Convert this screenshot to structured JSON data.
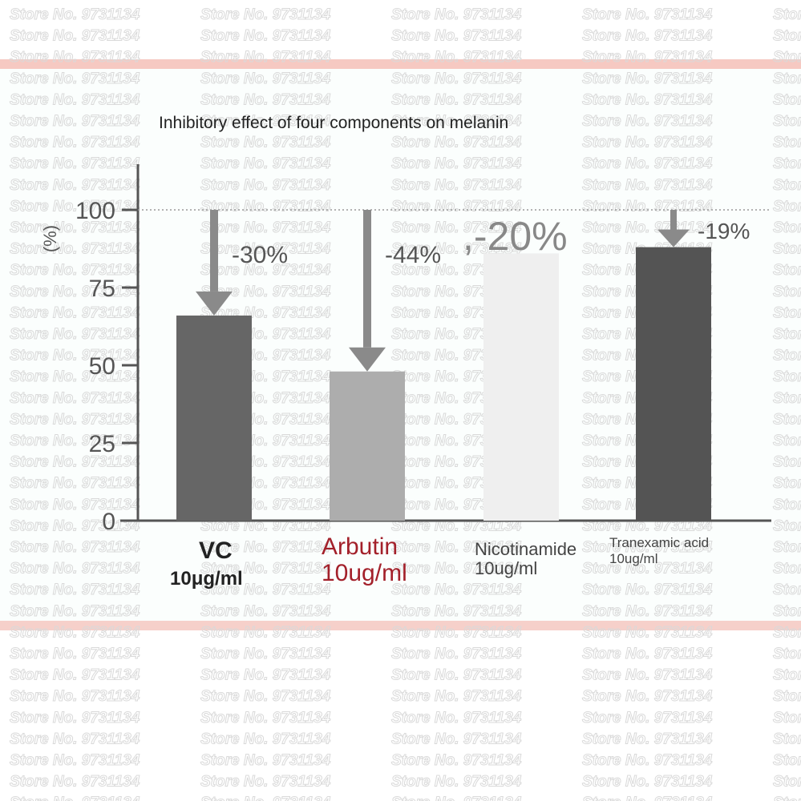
{
  "watermark_text": "Store No. 9731134",
  "chart_data": {
    "type": "bar",
    "title": "Inhibitory effect of four components on melanin",
    "ylabel": "(%)",
    "xlabel": "",
    "ylim": [
      0,
      100
    ],
    "y_ticks": [
      "0",
      "25",
      "50",
      "75",
      "100"
    ],
    "reference_line": 100,
    "categories": [
      {
        "name": "VC",
        "dose": "10μg/ml",
        "value": 66,
        "change_label": "-30%",
        "bar_color": "#666666",
        "label_color": "#222222"
      },
      {
        "name": "Arbutin",
        "dose": "10ug/ml",
        "value": 48,
        "change_label": "-44%",
        "bar_color": "#adadad",
        "label_color": "#a3202a"
      },
      {
        "name": "Nicotinamide",
        "dose": "10ug/ml",
        "value": 86,
        "change_label": ",-20%",
        "bar_color": "#efefef",
        "label_color": "#444444"
      },
      {
        "name": "Tranexamic acid",
        "dose": "10ug/ml",
        "value": 88,
        "change_label": "-19%",
        "bar_color": "#545454",
        "label_color": "#444444"
      }
    ],
    "arrow_color": "#8a8a8a",
    "grid": false,
    "legend": "none"
  }
}
